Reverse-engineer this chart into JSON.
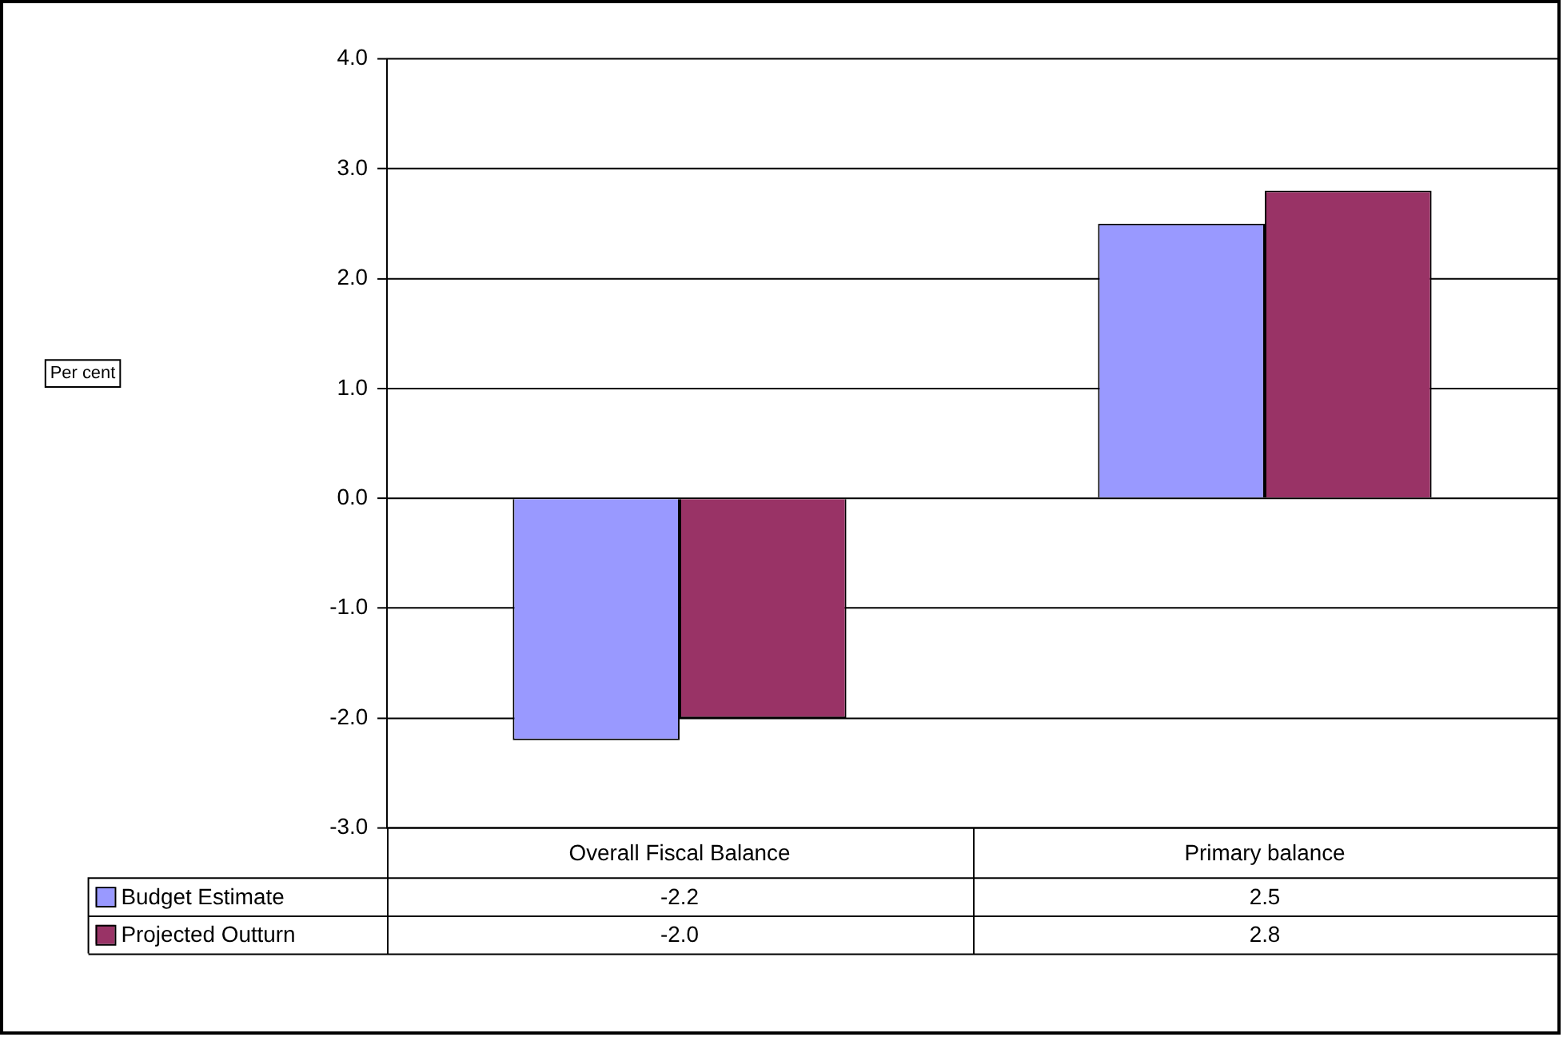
{
  "chart_data": {
    "type": "bar",
    "annotations": [
      "Per cent"
    ],
    "categories": [
      "Overall Fiscal Balance",
      "Primary balance"
    ],
    "series": [
      {
        "name": "Budget Estimate",
        "color": "#9999ff",
        "values": [
          -2.2,
          2.5
        ],
        "value_labels": [
          "-2.2",
          "2.5"
        ]
      },
      {
        "name": "Projected Outturn",
        "color": "#993366",
        "values": [
          -2.0,
          2.8
        ],
        "value_labels": [
          "-2.0",
          "2.8"
        ]
      }
    ],
    "ylim": [
      -3,
      4
    ],
    "yticks": [
      {
        "value": -3,
        "label": "-3.0"
      },
      {
        "value": -2,
        "label": "-2.0"
      },
      {
        "value": -1,
        "label": "-1.0"
      },
      {
        "value": 0,
        "label": "0.0"
      },
      {
        "value": 1,
        "label": "1.0"
      },
      {
        "value": 2,
        "label": "2.0"
      },
      {
        "value": 3,
        "label": "3.0"
      },
      {
        "value": 4,
        "label": "4.0"
      }
    ],
    "grid": "y",
    "legend": "bottom"
  }
}
